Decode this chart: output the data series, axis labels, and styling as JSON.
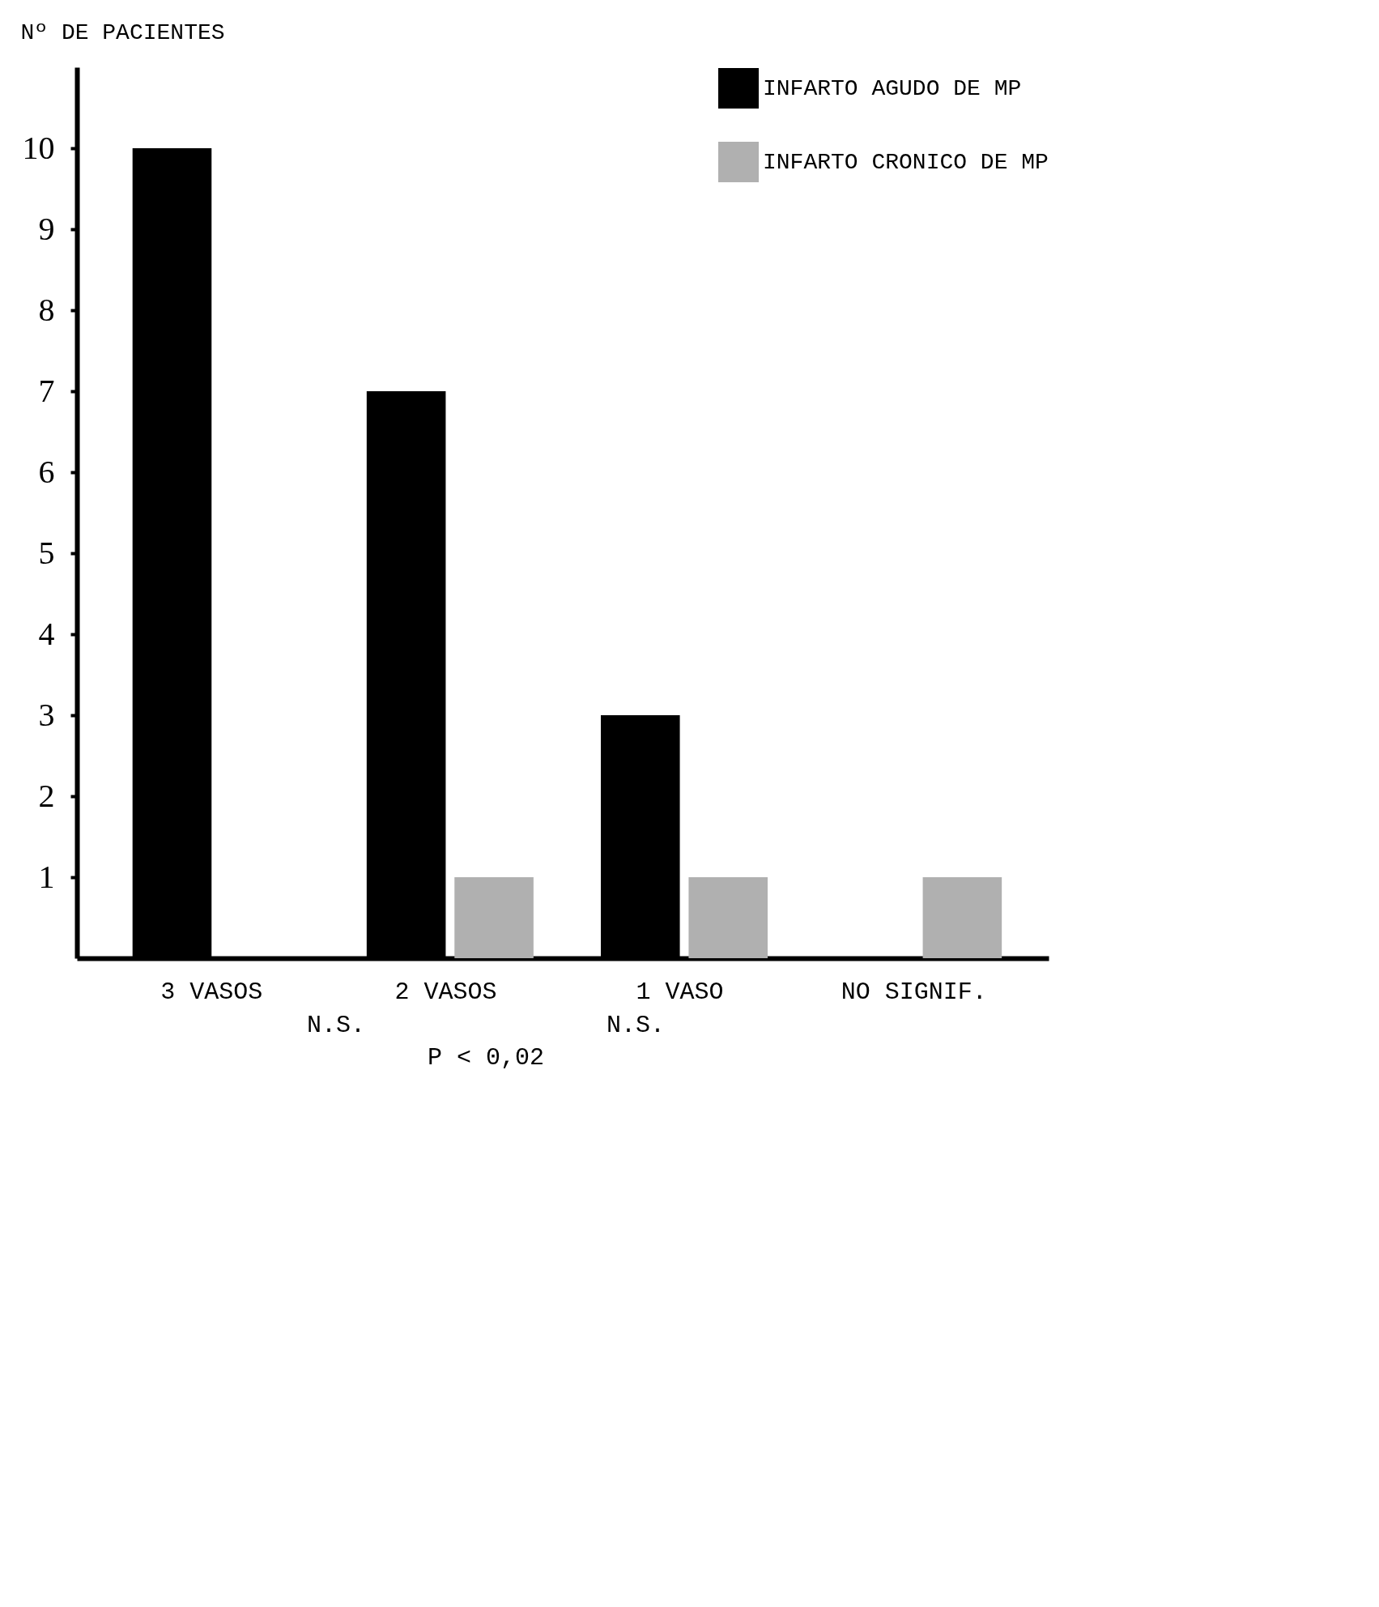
{
  "chart_data": {
    "type": "bar",
    "ylabel": "Nº DE PACIENTES",
    "categories": [
      "3 VASOS",
      "2 VASOS",
      "1 VASO",
      "NO SIGNIF."
    ],
    "series": [
      {
        "name": "INFARTO AGUDO DE MP",
        "color": "#000000",
        "values": [
          10,
          7,
          3,
          0
        ]
      },
      {
        "name": "INFARTO CRONICO DE MP",
        "color": "#b0b0b0",
        "values": [
          0,
          1,
          1,
          1
        ]
      }
    ],
    "ylim": [
      0,
      11
    ],
    "yticks": [
      1,
      2,
      3,
      4,
      5,
      6,
      7,
      8,
      9,
      10
    ],
    "grid": false,
    "legend": "top right",
    "annotations": [
      "N.S.",
      "N.S.",
      "P < 0,02"
    ]
  }
}
